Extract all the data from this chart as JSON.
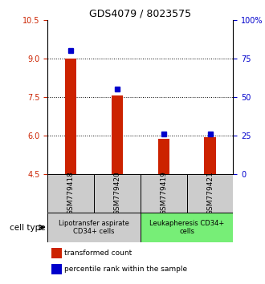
{
  "title": "GDS4079 / 8023575",
  "samples": [
    "GSM779418",
    "GSM779420",
    "GSM779419",
    "GSM779421"
  ],
  "transformed_counts": [
    9.0,
    7.55,
    5.87,
    5.92
  ],
  "percentile_ranks": [
    80.0,
    55.0,
    26.0,
    26.0
  ],
  "ylim_left": [
    4.5,
    10.5
  ],
  "ylim_right": [
    0,
    100
  ],
  "yticks_left": [
    4.5,
    6.0,
    7.5,
    9.0,
    10.5
  ],
  "yticks_right": [
    0,
    25,
    50,
    75,
    100
  ],
  "ytick_labels_right": [
    "0",
    "25",
    "50",
    "75",
    "100%"
  ],
  "dotted_lines": [
    6.0,
    7.5,
    9.0
  ],
  "bar_color": "#cc2200",
  "marker_color": "#0000cc",
  "bar_width": 0.25,
  "group1_color": "#cccccc",
  "group2_color": "#77ee77",
  "group1_label": "Lipotransfer aspirate\nCD34+ cells",
  "group2_label": "Leukapheresis CD34+\ncells",
  "cell_type_label": "cell type",
  "legend_red_label": "transformed count",
  "legend_blue_label": "percentile rank within the sample",
  "title_fontsize": 9,
  "tick_fontsize": 7,
  "label_fontsize": 7
}
